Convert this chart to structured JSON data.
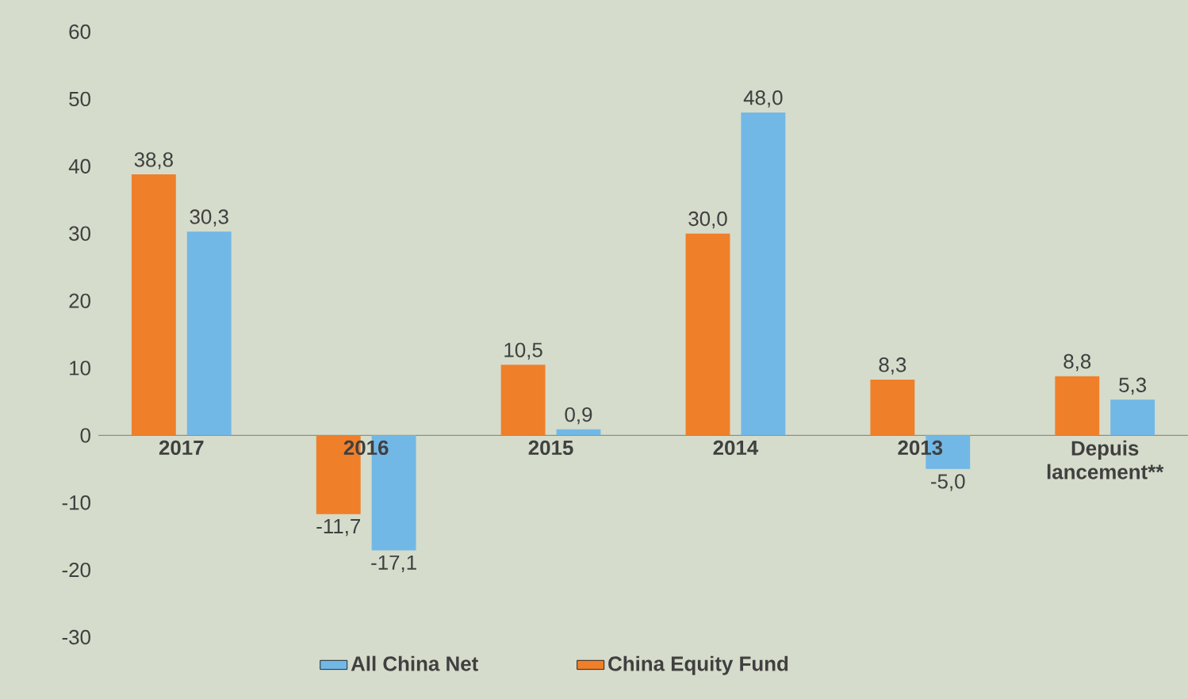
{
  "chart_data": {
    "type": "bar",
    "categories": [
      "2017",
      "2016",
      "2015",
      "2014",
      "2013",
      "Depuis lancement**"
    ],
    "series": [
      {
        "name": "All China Net",
        "color": "#72b8e6",
        "values": [
          30.3,
          -17.1,
          0.9,
          48.0,
          -5.0,
          5.3
        ],
        "value_labels": [
          "30,3",
          "-17,1",
          "0,9",
          "48,0",
          "-5,0",
          "5,3"
        ]
      },
      {
        "name": "China Equity Fund",
        "color": "#f07f2a",
        "values": [
          38.8,
          -11.7,
          10.5,
          30.0,
          8.3,
          8.8
        ],
        "value_labels": [
          "38,8",
          "-11,7",
          "10,5",
          "30,0",
          "8,3",
          "8,8"
        ]
      }
    ],
    "ylim": [
      -30,
      60
    ],
    "yticks": [
      -30,
      -20,
      -10,
      0,
      10,
      20,
      30,
      40,
      50,
      60
    ],
    "legend": "bottom",
    "grid": false
  }
}
